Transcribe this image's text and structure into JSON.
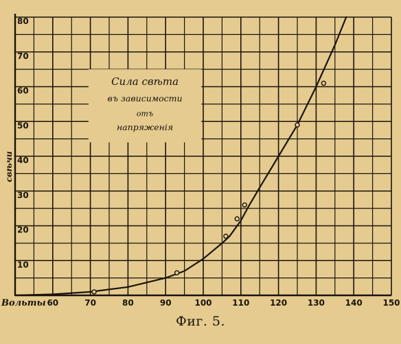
{
  "figure": {
    "caption": "Фиг. 5."
  },
  "chart_data": {
    "type": "line",
    "title_lines": [
      "Сила свѣта",
      "въ зависимости",
      "отъ",
      "напряженія"
    ],
    "xlabel": "Вольты",
    "ylabel": "свѣчи",
    "x_unit": "V",
    "xlim": [
      50,
      150
    ],
    "ylim": [
      0,
      80
    ],
    "x_ticks": [
      60,
      70,
      80,
      90,
      100,
      110,
      120,
      130,
      140,
      150
    ],
    "y_ticks": [
      10,
      20,
      30,
      40,
      50,
      60,
      70,
      80
    ],
    "grid": true,
    "series": [
      {
        "x": [
          50,
          60,
          70,
          80,
          90,
          95,
          100,
          105,
          107,
          110,
          112,
          115,
          120,
          125,
          130,
          135,
          138
        ],
        "y": [
          0,
          0.3,
          1,
          2.4,
          5,
          7,
          10.5,
          15,
          17,
          21.5,
          25.5,
          31,
          40,
          49,
          60,
          72,
          80
        ]
      }
    ],
    "markers": {
      "x": [
        71,
        93,
        106,
        109,
        111,
        125,
        132
      ],
      "y": [
        1,
        6.5,
        17,
        22,
        26,
        49,
        61
      ]
    },
    "colors": {
      "ink": "#1a130a",
      "paper": "#e5cb90"
    }
  }
}
